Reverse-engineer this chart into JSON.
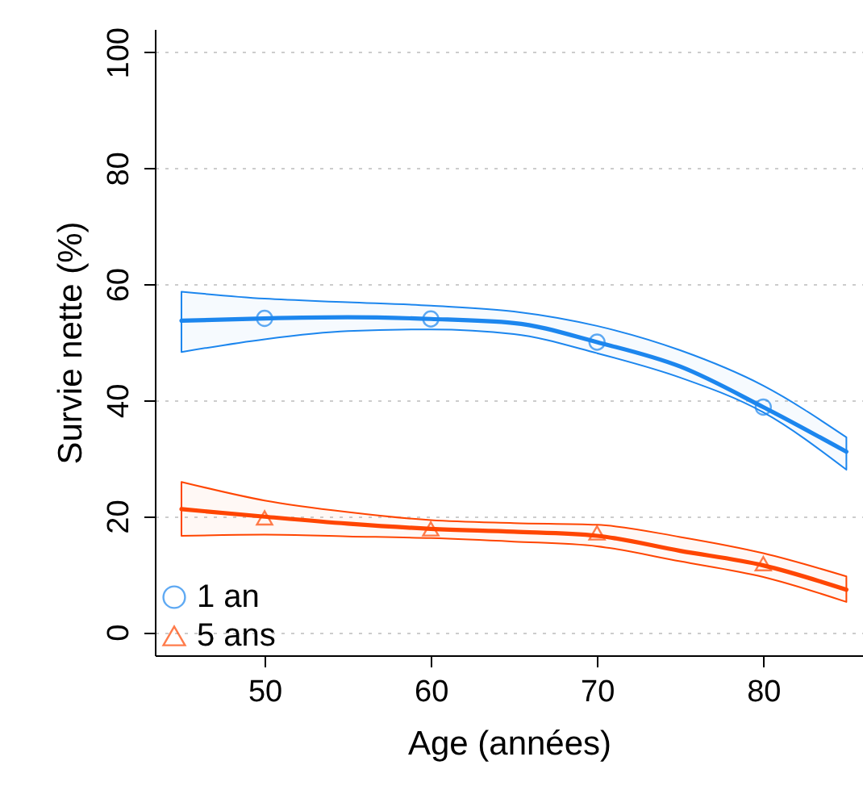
{
  "chart_data": {
    "type": "line",
    "xlabel": "Age (années)",
    "ylabel": "Survie nette (%)",
    "xlim": [
      43.4,
      86
    ],
    "ylim": [
      -4,
      104
    ],
    "xticks": [
      50,
      60,
      70,
      80
    ],
    "yticks": [
      0,
      20,
      40,
      60,
      80,
      100
    ],
    "grid": "y",
    "legend": "bottom left",
    "series": [
      {
        "color": "#1c86ee",
        "x": [
          45,
          50,
          55,
          60,
          65,
          70,
          75,
          80,
          85
        ],
        "values": [
          53.7,
          54.1,
          54.3,
          54.0,
          53.3,
          50.0,
          45.8,
          38.8,
          31.1
        ],
        "lower": [
          48.3,
          50.5,
          51.9,
          52.2,
          51.4,
          48.1,
          43.9,
          37.9,
          28.0
        ],
        "upper": [
          58.7,
          57.5,
          56.9,
          56.3,
          55.3,
          52.8,
          48.6,
          42.5,
          33.6
        ],
        "marker": "none"
      },
      {
        "color": "#ff4500",
        "x": [
          45,
          50,
          55,
          60,
          65,
          70,
          75,
          80,
          85
        ],
        "values": [
          21.2,
          19.9,
          18.7,
          17.8,
          17.3,
          16.6,
          14.0,
          11.5,
          7.3
        ],
        "lower": [
          16.6,
          16.8,
          16.5,
          16.2,
          15.6,
          14.8,
          12.2,
          9.5,
          5.2
        ],
        "upper": [
          25.9,
          22.7,
          20.7,
          19.3,
          18.8,
          18.5,
          16.4,
          13.6,
          9.6
        ],
        "marker": "none"
      },
      {
        "type": "scatter",
        "name": "1 an",
        "color": "#1c86ee",
        "x": [
          50,
          60,
          70,
          80
        ],
        "values": [
          54.1,
          54.0,
          50.0,
          38.8
        ],
        "marker": "circle"
      },
      {
        "type": "scatter",
        "name": "5 ans",
        "color": "#ff4500",
        "x": [
          50,
          60,
          70,
          80
        ],
        "values": [
          19.7,
          17.8,
          17.1,
          11.8
        ],
        "marker": "triangle"
      }
    ]
  }
}
